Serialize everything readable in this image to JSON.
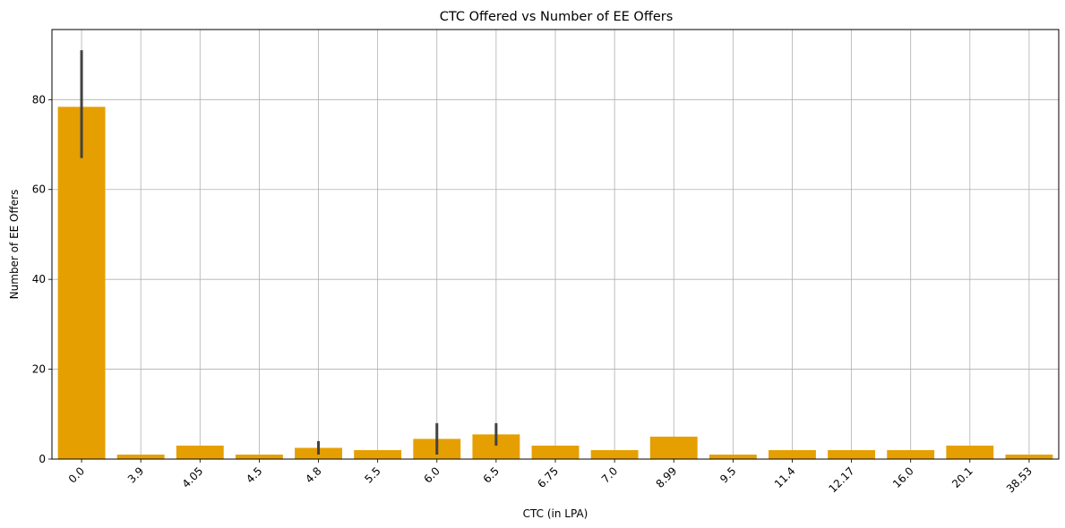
{
  "chart_data": {
    "type": "bar",
    "title": "CTC Offered vs Number of EE Offers",
    "xlabel": "CTC (in LPA)",
    "ylabel": "Number of EE Offers",
    "categories": [
      "0.0",
      "3.9",
      "4.05",
      "4.5",
      "4.8",
      "5.5",
      "6.0",
      "6.5",
      "6.75",
      "7.0",
      "8.99",
      "9.5",
      "11.4",
      "12.17",
      "16.0",
      "20.1",
      "38.53"
    ],
    "values": [
      78.4,
      1,
      3,
      1,
      2.5,
      2,
      4.5,
      5.5,
      3,
      2,
      5,
      1,
      2,
      2,
      2,
      3,
      1
    ],
    "error_bars": [
      {
        "category": "0.0",
        "low": 67,
        "high": 91
      },
      {
        "category": "4.8",
        "low": 1,
        "high": 4
      },
      {
        "category": "6.0",
        "low": 1,
        "high": 8
      },
      {
        "category": "6.5",
        "low": 3,
        "high": 8
      }
    ],
    "yticks": [
      0,
      20,
      40,
      60,
      80
    ],
    "ylim": [
      0,
      95.6
    ],
    "grid": true,
    "bar_color": "#e69f00",
    "errorbar_color": "#424242",
    "xtick_rotation": 45
  }
}
